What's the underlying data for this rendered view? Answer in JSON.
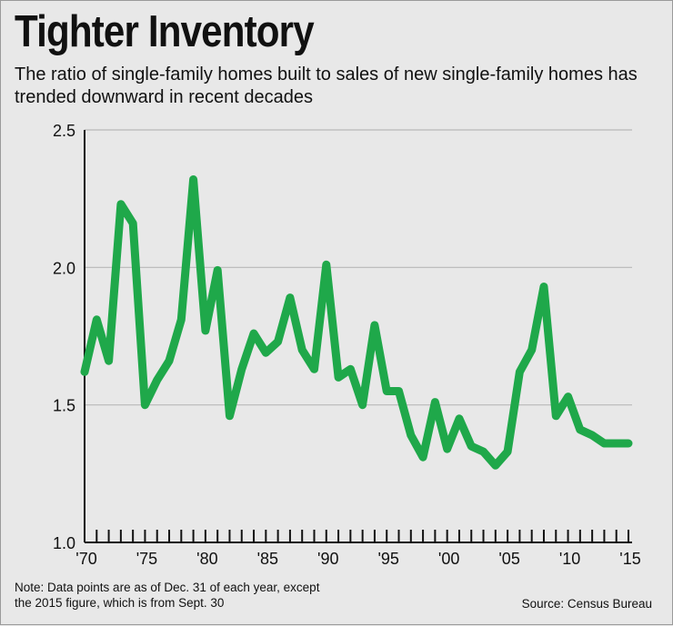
{
  "title": "Tighter Inventory",
  "subtitle": "The ratio of single-family homes built to sales of new single-family homes has trended downward in recent decades",
  "note_lines": [
    "Note: Data points are as of Dec. 31 of each year, except",
    "the 2015 figure, which is from Sept. 30"
  ],
  "source": "Source: Census Bureau",
  "colors": {
    "line": "#1fa84a",
    "grid": "#b8b8b8",
    "axis": "#111111",
    "background": "#e8e8e8"
  },
  "chart_data": {
    "type": "line",
    "title": "Tighter Inventory",
    "xlabel": "",
    "ylabel": "",
    "ylim": [
      1.0,
      2.5
    ],
    "xlim": [
      1970,
      2015
    ],
    "grid": true,
    "yticks": [
      1.0,
      1.5,
      2.0,
      2.5
    ],
    "ytick_labels": [
      "1.0",
      "1.5",
      "2.0",
      "2.5"
    ],
    "xticks": [
      1970,
      1975,
      1980,
      1985,
      1990,
      1995,
      2000,
      2005,
      2010,
      2015
    ],
    "xtick_labels": [
      "'70",
      "'75",
      "'80",
      "'85",
      "'90",
      "'95",
      "'00",
      "'05",
      "'10",
      "'15"
    ],
    "series": [
      {
        "x": [
          1970,
          1971,
          1972,
          1973,
          1974,
          1975,
          1976,
          1977,
          1978,
          1979,
          1980,
          1981,
          1982,
          1983,
          1984,
          1985,
          1986,
          1987,
          1988,
          1989,
          1990,
          1991,
          1992,
          1993,
          1994,
          1995,
          1996,
          1997,
          1998,
          1999,
          2000,
          2001,
          2002,
          2003,
          2004,
          2005,
          2006,
          2007,
          2008,
          2009,
          2010,
          2011,
          2012,
          2013,
          2014,
          2015
        ],
        "values": [
          1.62,
          1.81,
          1.66,
          2.23,
          2.16,
          1.5,
          1.59,
          1.66,
          1.81,
          2.32,
          1.77,
          1.99,
          1.46,
          1.63,
          1.76,
          1.69,
          1.73,
          1.89,
          1.7,
          1.63,
          2.01,
          1.6,
          1.63,
          1.5,
          1.79,
          1.55,
          1.55,
          1.39,
          1.31,
          1.51,
          1.34,
          1.45,
          1.35,
          1.33,
          1.28,
          1.33,
          1.62,
          1.7,
          1.93,
          1.46,
          1.53,
          1.41,
          1.39,
          1.36,
          1.36,
          1.36
        ]
      }
    ]
  }
}
